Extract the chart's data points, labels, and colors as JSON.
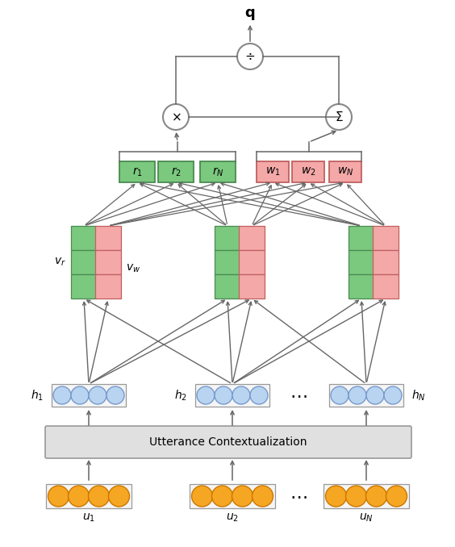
{
  "bg_color": "#ffffff",
  "green_fill": "#7bc87f",
  "green_edge": "#4a8a50",
  "pink_fill": "#f4a8a8",
  "pink_edge": "#c06060",
  "blue_fill": "#b8d4f0",
  "blue_edge": "#7799cc",
  "orange_fill": "#f5a623",
  "orange_edge": "#cc7700",
  "gray_fill": "#e0e0e0",
  "gray_edge": "#999999",
  "op_fill": "#ffffff",
  "op_edge": "#888888",
  "arrow_color": "#666666",
  "line_color": "#666666",
  "text_color": "#000000"
}
